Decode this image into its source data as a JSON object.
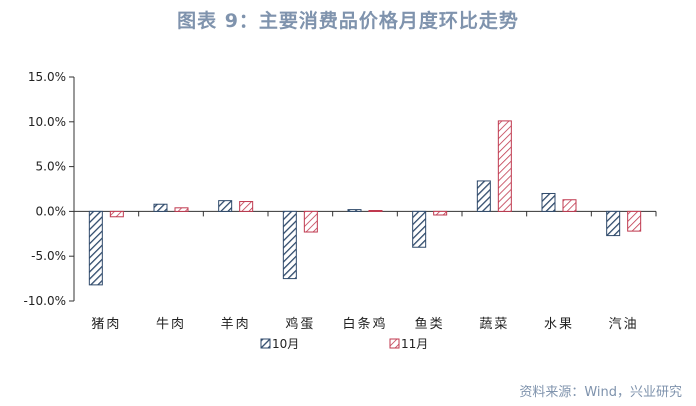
{
  "title": "图表 9：主要消费品价格月度环比走势",
  "source": "资料来源：Wind，兴业研究",
  "chart_data": {
    "type": "bar",
    "categories": [
      "猪肉",
      "牛肉",
      "羊肉",
      "鸡蛋",
      "白条鸡",
      "鱼类",
      "蔬菜",
      "水果",
      "汽油"
    ],
    "series": [
      {
        "name": "10月",
        "values": [
          -8.2,
          0.8,
          1.2,
          -7.5,
          0.2,
          -4.0,
          3.4,
          2.0,
          -2.7
        ],
        "color": "#2f4a6b"
      },
      {
        "name": "11月",
        "values": [
          -0.6,
          0.4,
          1.1,
          -2.3,
          0.1,
          -0.4,
          10.1,
          1.3,
          -2.2
        ],
        "color": "#c0394f"
      }
    ],
    "ylim": [
      -10,
      15
    ],
    "yticks": [
      "-10.0%",
      "-5.0%",
      "0.0%",
      "5.0%",
      "10.0%",
      "15.0%"
    ],
    "ytick_values": [
      -10,
      -5,
      0,
      5,
      10,
      15
    ],
    "grid": false,
    "legend_position": "bottom"
  }
}
